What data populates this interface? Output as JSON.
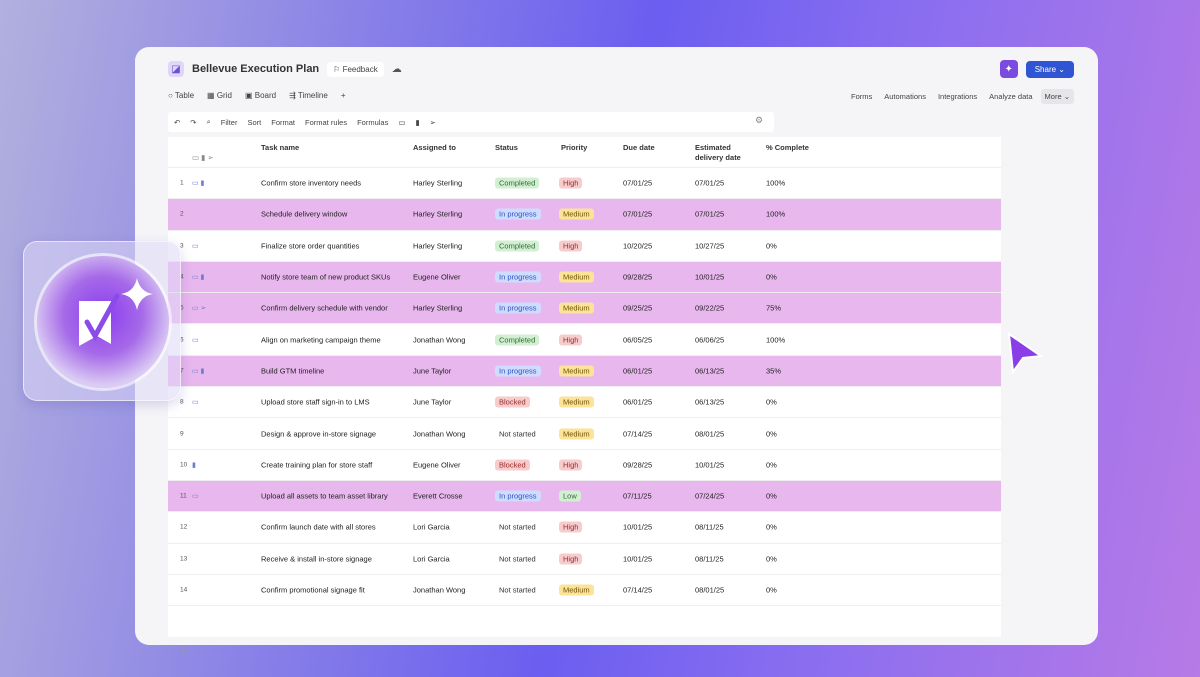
{
  "header": {
    "title": "Bellevue Execution Plan",
    "feedback": "Feedback",
    "share": "Share ⌄"
  },
  "views": [
    "Table",
    "Grid",
    "Board",
    "Timeline",
    "+"
  ],
  "tools": [
    "Forms",
    "Automations",
    "Integrations",
    "Analyze data",
    "More ⌄"
  ],
  "toolbar": [
    "↶",
    "↷",
    "⌕",
    "Filter",
    "Sort",
    "Format",
    "Format rules",
    "Formulas"
  ],
  "columns": [
    "Task name",
    "Assigned to",
    "Status",
    "Priority",
    "Due date",
    "Estimated delivery date",
    "% Complete"
  ],
  "colors": {
    "highlight": "#e8b7ee",
    "accent": "#2f55d4"
  },
  "rows": [
    {
      "n": "1",
      "icons": "▭ ▮",
      "task": "Confirm store inventory needs",
      "who": "Harley Sterling",
      "status": "Completed",
      "priority": "High",
      "due": "07/01/25",
      "est": "07/01/25",
      "pct": "100%",
      "hl": false
    },
    {
      "n": "2",
      "icons": "",
      "task": "Schedule delivery window",
      "who": "Harley Sterling",
      "status": "In progress",
      "priority": "Medium",
      "due": "07/01/25",
      "est": "07/01/25",
      "pct": "100%",
      "hl": true
    },
    {
      "n": "3",
      "icons": "▭",
      "task": "Finalize store order quantities",
      "who": "Harley Sterling",
      "status": "Completed",
      "priority": "High",
      "due": "10/20/25",
      "est": "10/27/25",
      "pct": "0%",
      "hl": false
    },
    {
      "n": "4",
      "icons": "▭ ▮",
      "task": "Notify store team of new product SKUs",
      "who": "Eugene Oliver",
      "status": "In progress",
      "priority": "Medium",
      "due": "09/28/25",
      "est": "10/01/25",
      "pct": "0%",
      "hl": true
    },
    {
      "n": "5",
      "icons": "▭    ➢",
      "task": "Confirm delivery schedule with vendor",
      "who": "Harley Sterling",
      "status": "In progress",
      "priority": "Medium",
      "due": "09/25/25",
      "est": "09/22/25",
      "pct": "75%",
      "hl": true
    },
    {
      "n": "6",
      "icons": "▭",
      "task": "Align on marketing campaign theme",
      "who": "Jonathan Wong",
      "status": "Completed",
      "priority": "High",
      "due": "06/05/25",
      "est": "06/06/25",
      "pct": "100%",
      "hl": false
    },
    {
      "n": "7",
      "icons": "▭ ▮",
      "task": "Build GTM timeline",
      "who": "June Taylor",
      "status": "In progress",
      "priority": "Medium",
      "due": "06/01/25",
      "est": "06/13/25",
      "pct": "35%",
      "hl": true
    },
    {
      "n": "8",
      "icons": "▭",
      "task": "Upload store staff sign-in to LMS",
      "who": "June Taylor",
      "status": "Blocked",
      "priority": "Medium",
      "due": "06/01/25",
      "est": "06/13/25",
      "pct": "0%",
      "hl": false
    },
    {
      "n": "9",
      "icons": "",
      "task": "Design & approve in-store signage",
      "who": "Jonathan Wong",
      "status": "Not started",
      "priority": "Medium",
      "due": "07/14/25",
      "est": "08/01/25",
      "pct": "0%",
      "hl": false
    },
    {
      "n": "10",
      "icons": "   ▮",
      "task": "Create training plan for store staff",
      "who": "Eugene Oliver",
      "status": "Blocked",
      "priority": "High",
      "due": "09/28/25",
      "est": "10/01/25",
      "pct": "0%",
      "hl": false
    },
    {
      "n": "11",
      "icons": "▭",
      "task": "Upload all assets to team asset library",
      "who": "Everett Crosse",
      "status": "In progress",
      "priority": "Low",
      "due": "07/11/25",
      "est": "07/24/25",
      "pct": "0%",
      "hl": true
    },
    {
      "n": "12",
      "icons": "",
      "task": "Confirm launch date with all stores",
      "who": "Lori Garcia",
      "status": "Not started",
      "priority": "High",
      "due": "10/01/25",
      "est": "08/11/25",
      "pct": "0%",
      "hl": false
    },
    {
      "n": "13",
      "icons": "",
      "task": "Receive & install in-store signage",
      "who": "Lori Garcia",
      "status": "Not started",
      "priority": "High",
      "due": "10/01/25",
      "est": "08/11/25",
      "pct": "0%",
      "hl": false
    },
    {
      "n": "14",
      "icons": "",
      "task": "Confirm promotional signage fit",
      "who": "Jonathan Wong",
      "status": "Not started",
      "priority": "Medium",
      "due": "07/14/25",
      "est": "08/01/25",
      "pct": "0%",
      "hl": false
    }
  ]
}
